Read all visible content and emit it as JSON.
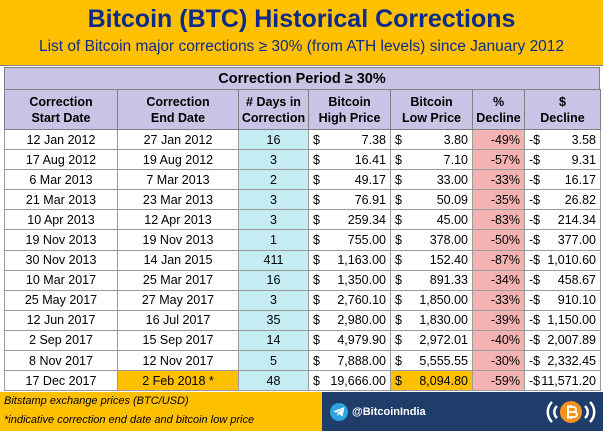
{
  "title": "Bitcoin (BTC) Historical Corrections",
  "subtitle": "List of Bitcoin major corrections ≥ 30% (from ATH levels) since January 2012",
  "section_header": "Correction Period ≥ 30%",
  "headers": [
    [
      "Correction",
      "Start Date"
    ],
    [
      "Correction",
      "End Date"
    ],
    [
      "# Days in",
      "Correction"
    ],
    [
      "Bitcoin",
      "High Price"
    ],
    [
      "Bitcoin",
      "Low Price"
    ],
    [
      "%",
      "Decline"
    ],
    [
      "$",
      "Decline"
    ]
  ],
  "currency_symbol": "$",
  "rows": [
    {
      "start": "12 Jan 2012",
      "end": "27 Jan 2012",
      "days": "16",
      "high": "7.38",
      "low": "3.80",
      "pct": "-49%",
      "dec_sign": "-$",
      "dec": "3.58"
    },
    {
      "start": "17 Aug 2012",
      "end": "19 Aug 2012",
      "days": "3",
      "high": "16.41",
      "low": "7.10",
      "pct": "-57%",
      "dec_sign": "-$",
      "dec": "9.31"
    },
    {
      "start": "6 Mar 2013",
      "end": "7 Mar 2013",
      "days": "2",
      "high": "49.17",
      "low": "33.00",
      "pct": "-33%",
      "dec_sign": "-$",
      "dec": "16.17"
    },
    {
      "start": "21 Mar 2013",
      "end": "23 Mar 2013",
      "days": "3",
      "high": "76.91",
      "low": "50.09",
      "pct": "-35%",
      "dec_sign": "-$",
      "dec": "26.82"
    },
    {
      "start": "10 Apr 2013",
      "end": "12 Apr 2013",
      "days": "3",
      "high": "259.34",
      "low": "45.00",
      "pct": "-83%",
      "dec_sign": "-$",
      "dec": "214.34"
    },
    {
      "start": "19 Nov 2013",
      "end": "19 Nov 2013",
      "days": "1",
      "high": "755.00",
      "low": "378.00",
      "pct": "-50%",
      "dec_sign": "-$",
      "dec": "377.00"
    },
    {
      "start": "30 Nov 2013",
      "end": "14 Jan 2015",
      "days": "411",
      "high": "1,163.00",
      "low": "152.40",
      "pct": "-87%",
      "dec_sign": "-$",
      "dec": "1,010.60"
    },
    {
      "start": "10 Mar 2017",
      "end": "25 Mar 2017",
      "days": "16",
      "high": "1,350.00",
      "low": "891.33",
      "pct": "-34%",
      "dec_sign": "-$",
      "dec": "458.67"
    },
    {
      "start": "25 May 2017",
      "end": "27 May 2017",
      "days": "3",
      "high": "2,760.10",
      "low": "1,850.00",
      "pct": "-33%",
      "dec_sign": "-$",
      "dec": "910.10"
    },
    {
      "start": "12 Jun 2017",
      "end": "16 Jul 2017",
      "days": "35",
      "high": "2,980.00",
      "low": "1,830.00",
      "pct": "-39%",
      "dec_sign": "-$",
      "dec": "1,150.00"
    },
    {
      "start": "2 Sep 2017",
      "end": "15 Sep 2017",
      "days": "14",
      "high": "4,979.90",
      "low": "2,972.01",
      "pct": "-40%",
      "dec_sign": "-$",
      "dec": "2,007.89"
    },
    {
      "start": "8 Nov 2017",
      "end": "12 Nov 2017",
      "days": "5",
      "high": "7,888.00",
      "low": "5,555.55",
      "pct": "-30%",
      "dec_sign": "-$",
      "dec": "2,332.45"
    },
    {
      "start": "17 Dec 2017",
      "end": "2 Feb 2018 *",
      "days": "48",
      "high": "19,666.00",
      "low": "8,094.80",
      "pct": "-59%",
      "dec_sign": "-$",
      "dec": "11,571.20",
      "highlight": true
    }
  ],
  "footnotes": {
    "source": "Bitstamp exchange prices (BTC/USD)",
    "indicative": "*indicative correction end date and bitcoin low price"
  },
  "brand": {
    "handle": "@BitcoinIndia",
    "telegram_icon": "telegram-icon",
    "logo_icon": "bitcoin-broadcast-icon",
    "accent": "#ffc000",
    "header_bg": "#c9c3e6",
    "days_bg": "#c5ecf2",
    "pct_bg": "#f4b3b3",
    "footer_bg": "#1f3d6b",
    "title_color": "#0d2b8a"
  }
}
